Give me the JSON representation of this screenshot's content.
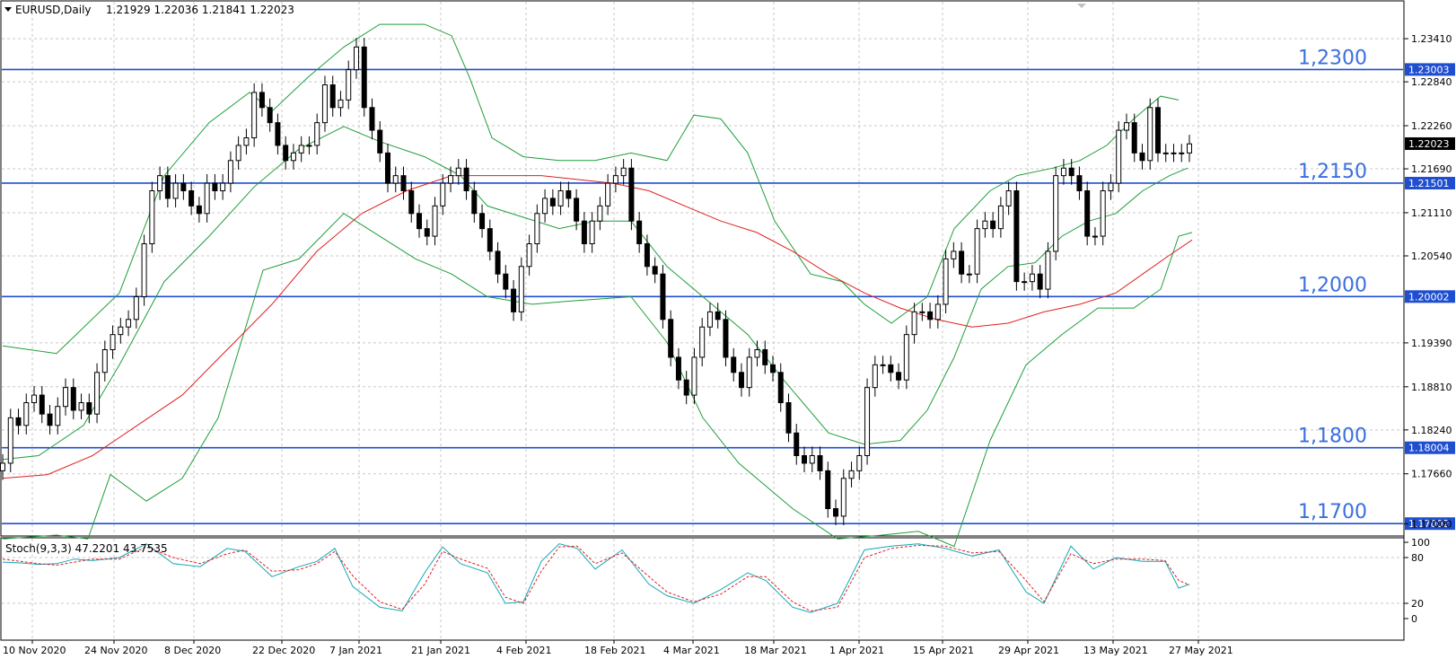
{
  "header": {
    "symbol": "EURUSD,Daily",
    "ohlc": "1.21929 1.22036 1.21841 1.22023"
  },
  "indicator": {
    "label": "Stoch(9,3,3) 47.2201 43.7535"
  },
  "colors": {
    "candle": "#000000",
    "level_line": "#1f4fd0",
    "level_text": "#3a6fe0",
    "bollinger": "#1e9e3a",
    "ma": "#e02020",
    "stoch_main": "#12a8b8",
    "stoch_signal": "#e02020",
    "grid": "#c8c8c8",
    "price_box": "#1f4fd0",
    "current_box": "#000000"
  },
  "chart_data": {
    "type": "candlestick",
    "y_range": [
      1.1685,
      1.2385
    ],
    "price_ticks": [
      "1.23410",
      "1.22840",
      "1.22260",
      "1.21690",
      "1.21110",
      "1.20540",
      "1.19390",
      "1.18810",
      "1.18240",
      "1.17660",
      "1.17000"
    ],
    "levels": [
      {
        "label": "1,2300",
        "price_tag": "1.23003",
        "value": 1.23003
      },
      {
        "label": "1,2150",
        "price_tag": "1.21501",
        "value": 1.21501
      },
      {
        "label": "1,2000",
        "price_tag": "1.20002",
        "value": 1.20002
      },
      {
        "label": "1,1800",
        "price_tag": "1.18004",
        "value": 1.18004
      },
      {
        "label": "1,1700",
        "price_tag": "1.17002",
        "value": 1.17002
      }
    ],
    "current_price": {
      "value": 1.22023,
      "label": "1.22023"
    },
    "x_labels": [
      "10 Nov 2020",
      "24 Nov 2020",
      "8 Dec 2020",
      "22 Dec 2020",
      "7 Jan 2021",
      "21 Jan 2021",
      "4 Feb 2021",
      "18 Feb 2021",
      "4 Mar 2021",
      "18 Mar 2021",
      "1 Apr 2021",
      "15 Apr 2021",
      "29 Apr 2021",
      "13 May 2021",
      "27 May 2021"
    ],
    "closes": [
      1.178,
      1.184,
      1.183,
      1.186,
      1.187,
      1.1845,
      1.183,
      1.1855,
      1.188,
      1.185,
      1.186,
      1.1845,
      1.19,
      1.193,
      1.195,
      1.196,
      1.197,
      1.2,
      1.207,
      1.214,
      1.216,
      1.213,
      1.215,
      1.214,
      1.212,
      1.211,
      1.215,
      1.214,
      1.215,
      1.218,
      1.22,
      1.221,
      1.227,
      1.225,
      1.223,
      1.22,
      1.218,
      1.219,
      1.22,
      1.22,
      1.223,
      1.228,
      1.225,
      1.226,
      1.23,
      1.233,
      1.225,
      1.222,
      1.219,
      1.215,
      1.216,
      1.214,
      1.211,
      1.209,
      1.208,
      1.212,
      1.215,
      1.216,
      1.217,
      1.214,
      1.211,
      1.209,
      1.206,
      1.203,
      1.201,
      1.198,
      1.204,
      1.207,
      1.211,
      1.213,
      1.212,
      1.214,
      1.213,
      1.21,
      1.207,
      1.21,
      1.212,
      1.215,
      1.216,
      1.217,
      1.21,
      1.207,
      1.204,
      1.203,
      1.197,
      1.192,
      1.189,
      1.187,
      1.192,
      1.196,
      1.198,
      1.197,
      1.192,
      1.19,
      1.188,
      1.192,
      1.193,
      1.191,
      1.19,
      1.186,
      1.182,
      1.179,
      1.178,
      1.179,
      1.177,
      1.172,
      1.171,
      1.176,
      1.177,
      1.179,
      1.188,
      1.191,
      1.191,
      1.19,
      1.189,
      1.195,
      1.198,
      1.198,
      1.197,
      1.199,
      1.205,
      1.206,
      1.203,
      1.203,
      1.209,
      1.21,
      1.209,
      1.212,
      1.214,
      1.202,
      1.202,
      1.203,
      1.201,
      1.206,
      1.216,
      1.217,
      1.216,
      1.214,
      1.208,
      1.208,
      1.214,
      1.215,
      1.222,
      1.223,
      1.219,
      1.218,
      1.225,
      1.219,
      1.219,
      1.219,
      1.219,
      1.2202
    ],
    "bollinger": {
      "upper": [
        [
          0,
          1.1935
        ],
        [
          60,
          1.1925
        ],
        [
          130,
          1.2005
        ],
        [
          180,
          1.216
        ],
        [
          230,
          1.223
        ],
        [
          275,
          1.227
        ],
        [
          300,
          1.2245
        ],
        [
          340,
          1.229
        ],
        [
          380,
          1.233
        ],
        [
          420,
          1.236
        ],
        [
          470,
          1.236
        ],
        [
          500,
          1.2345
        ],
        [
          520,
          1.229
        ],
        [
          545,
          1.221
        ],
        [
          580,
          1.2185
        ],
        [
          620,
          1.218
        ],
        [
          660,
          1.218
        ],
        [
          700,
          1.219
        ],
        [
          740,
          1.218
        ],
        [
          770,
          1.224
        ],
        [
          800,
          1.2235
        ],
        [
          830,
          1.219
        ],
        [
          860,
          1.21
        ],
        [
          900,
          1.203
        ],
        [
          935,
          1.202
        ],
        [
          960,
          1.199
        ],
        [
          990,
          1.1965
        ],
        [
          1030,
          1.2
        ],
        [
          1060,
          1.209
        ],
        [
          1100,
          1.214
        ],
        [
          1130,
          1.216
        ],
        [
          1170,
          1.217
        ],
        [
          1200,
          1.218
        ],
        [
          1230,
          1.22
        ],
        [
          1260,
          1.2235
        ],
        [
          1290,
          1.2265
        ],
        [
          1310,
          1.226
        ]
      ],
      "middle": [
        [
          0,
          1.1785
        ],
        [
          40,
          1.179
        ],
        [
          90,
          1.183
        ],
        [
          130,
          1.191
        ],
        [
          180,
          1.202
        ],
        [
          230,
          1.208
        ],
        [
          280,
          1.2145
        ],
        [
          330,
          1.2195
        ],
        [
          380,
          1.2225
        ],
        [
          420,
          1.2205
        ],
        [
          470,
          1.2185
        ],
        [
          510,
          1.216
        ],
        [
          540,
          1.212
        ],
        [
          580,
          1.2105
        ],
        [
          620,
          1.209
        ],
        [
          660,
          1.21
        ],
        [
          700,
          1.21
        ],
        [
          740,
          1.204
        ],
        [
          790,
          1.199
        ],
        [
          830,
          1.195
        ],
        [
          870,
          1.189
        ],
        [
          920,
          1.182
        ],
        [
          960,
          1.1805
        ],
        [
          1000,
          1.181
        ],
        [
          1030,
          1.185
        ],
        [
          1060,
          1.192
        ],
        [
          1090,
          1.201
        ],
        [
          1120,
          1.204
        ],
        [
          1150,
          1.2045
        ],
        [
          1180,
          1.208
        ],
        [
          1210,
          1.21
        ],
        [
          1240,
          1.211
        ],
        [
          1270,
          1.214
        ],
        [
          1300,
          1.216
        ],
        [
          1320,
          1.217
        ]
      ],
      "lower": [
        [
          0,
          1.168
        ],
        [
          60,
          1.1685
        ],
        [
          95,
          1.168
        ],
        [
          120,
          1.1765
        ],
        [
          160,
          1.173
        ],
        [
          200,
          1.176
        ],
        [
          240,
          1.184
        ],
        [
          290,
          1.2035
        ],
        [
          330,
          1.205
        ],
        [
          380,
          1.211
        ],
        [
          420,
          1.208
        ],
        [
          460,
          1.205
        ],
        [
          500,
          1.203
        ],
        [
          540,
          1.2
        ],
        [
          590,
          1.199
        ],
        [
          640,
          1.1995
        ],
        [
          700,
          1.2
        ],
        [
          740,
          1.194
        ],
        [
          780,
          1.184
        ],
        [
          820,
          1.178
        ],
        [
          880,
          1.172
        ],
        [
          930,
          1.168
        ],
        [
          980,
          1.1685
        ],
        [
          1020,
          1.169
        ],
        [
          1060,
          1.167
        ],
        [
          1100,
          1.181
        ],
        [
          1140,
          1.191
        ],
        [
          1180,
          1.195
        ],
        [
          1220,
          1.1985
        ],
        [
          1260,
          1.1985
        ],
        [
          1290,
          1.201
        ],
        [
          1310,
          1.208
        ],
        [
          1325,
          1.2085
        ]
      ]
    },
    "ma": [
      [
        0,
        1.176
      ],
      [
        50,
        1.1765
      ],
      [
        100,
        1.179
      ],
      [
        150,
        1.183
      ],
      [
        200,
        1.187
      ],
      [
        250,
        1.193
      ],
      [
        300,
        1.199
      ],
      [
        350,
        1.206
      ],
      [
        400,
        1.211
      ],
      [
        450,
        1.214
      ],
      [
        500,
        1.216
      ],
      [
        550,
        1.216
      ],
      [
        600,
        1.216
      ],
      [
        640,
        1.2155
      ],
      [
        680,
        1.215
      ],
      [
        720,
        1.214
      ],
      [
        760,
        1.212
      ],
      [
        800,
        1.21
      ],
      [
        840,
        1.2085
      ],
      [
        880,
        1.206
      ],
      [
        920,
        1.203
      ],
      [
        960,
        1.2005
      ],
      [
        1000,
        1.1985
      ],
      [
        1040,
        1.197
      ],
      [
        1080,
        1.196
      ],
      [
        1120,
        1.1965
      ],
      [
        1160,
        1.198
      ],
      [
        1200,
        1.199
      ],
      [
        1240,
        1.2005
      ],
      [
        1270,
        1.203
      ],
      [
        1300,
        1.2055
      ],
      [
        1325,
        1.2075
      ]
    ],
    "stochastic": {
      "y_ticks": [
        "100",
        "80",
        "20",
        "0"
      ],
      "main": [
        [
          0,
          74
        ],
        [
          20,
          73
        ],
        [
          40,
          71
        ],
        [
          60,
          72
        ],
        [
          80,
          78
        ],
        [
          100,
          76
        ],
        [
          130,
          80
        ],
        [
          160,
          98
        ],
        [
          190,
          72
        ],
        [
          220,
          68
        ],
        [
          250,
          92
        ],
        [
          270,
          88
        ],
        [
          300,
          55
        ],
        [
          330,
          68
        ],
        [
          350,
          75
        ],
        [
          370,
          92
        ],
        [
          390,
          42
        ],
        [
          420,
          15
        ],
        [
          445,
          10
        ],
        [
          470,
          60
        ],
        [
          490,
          94
        ],
        [
          510,
          72
        ],
        [
          540,
          60
        ],
        [
          560,
          20
        ],
        [
          580,
          22
        ],
        [
          600,
          75
        ],
        [
          620,
          98
        ],
        [
          640,
          92
        ],
        [
          660,
          65
        ],
        [
          690,
          90
        ],
        [
          720,
          45
        ],
        [
          740,
          30
        ],
        [
          770,
          20
        ],
        [
          800,
          38
        ],
        [
          830,
          60
        ],
        [
          850,
          50
        ],
        [
          880,
          15
        ],
        [
          900,
          8
        ],
        [
          930,
          20
        ],
        [
          960,
          90
        ],
        [
          990,
          95
        ],
        [
          1020,
          98
        ],
        [
          1050,
          92
        ],
        [
          1080,
          82
        ],
        [
          1110,
          90
        ],
        [
          1140,
          35
        ],
        [
          1160,
          20
        ],
        [
          1190,
          95
        ],
        [
          1215,
          65
        ],
        [
          1240,
          80
        ],
        [
          1270,
          75
        ],
        [
          1295,
          75
        ],
        [
          1310,
          40
        ],
        [
          1322,
          45
        ]
      ],
      "signal": [
        [
          0,
          78
        ],
        [
          20,
          75
        ],
        [
          40,
          72
        ],
        [
          60,
          70
        ],
        [
          80,
          74
        ],
        [
          100,
          78
        ],
        [
          130,
          78
        ],
        [
          160,
          94
        ],
        [
          190,
          80
        ],
        [
          220,
          72
        ],
        [
          250,
          85
        ],
        [
          270,
          90
        ],
        [
          300,
          62
        ],
        [
          330,
          64
        ],
        [
          350,
          72
        ],
        [
          370,
          88
        ],
        [
          390,
          56
        ],
        [
          420,
          22
        ],
        [
          445,
          12
        ],
        [
          470,
          45
        ],
        [
          490,
          88
        ],
        [
          510,
          78
        ],
        [
          540,
          66
        ],
        [
          560,
          28
        ],
        [
          580,
          20
        ],
        [
          600,
          62
        ],
        [
          620,
          94
        ],
        [
          640,
          95
        ],
        [
          660,
          72
        ],
        [
          690,
          86
        ],
        [
          720,
          55
        ],
        [
          740,
          35
        ],
        [
          770,
          22
        ],
        [
          800,
          32
        ],
        [
          830,
          55
        ],
        [
          850,
          55
        ],
        [
          880,
          22
        ],
        [
          900,
          10
        ],
        [
          930,
          15
        ],
        [
          960,
          80
        ],
        [
          990,
          92
        ],
        [
          1020,
          96
        ],
        [
          1050,
          95
        ],
        [
          1080,
          86
        ],
        [
          1110,
          88
        ],
        [
          1140,
          50
        ],
        [
          1160,
          22
        ],
        [
          1190,
          85
        ],
        [
          1215,
          72
        ],
        [
          1240,
          78
        ],
        [
          1270,
          78
        ],
        [
          1295,
          76
        ],
        [
          1310,
          50
        ],
        [
          1322,
          44
        ]
      ]
    }
  }
}
